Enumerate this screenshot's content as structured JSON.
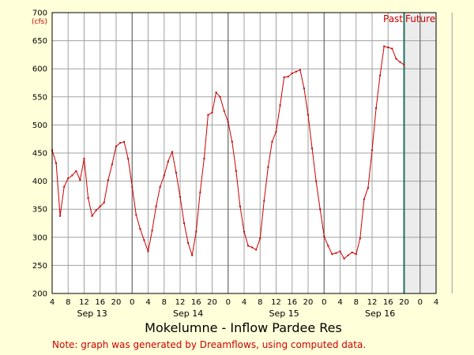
{
  "chart_data": {
    "type": "line",
    "title": "Mokelumne - Inflow Pardee Res",
    "note": "Note: graph was generated by Dreamflows, using computed data.",
    "y_unit_label": "(cfs)",
    "ylim": [
      200,
      700
    ],
    "y_ticks": [
      200,
      250,
      300,
      350,
      400,
      450,
      500,
      550,
      600,
      650,
      700
    ],
    "x_unit": "hours",
    "xlim": [
      0,
      96
    ],
    "x_tick_labels": [
      "4",
      "8",
      "12",
      "16",
      "20",
      "0",
      "4",
      "8",
      "12",
      "16",
      "20",
      "0",
      "4",
      "8",
      "12",
      "16",
      "20",
      "0",
      "4",
      "8",
      "12",
      "16",
      "20",
      "0",
      "4"
    ],
    "day_labels": [
      {
        "x": 10,
        "text": "Sep 13"
      },
      {
        "x": 34,
        "text": "Sep 14"
      },
      {
        "x": 58,
        "text": "Sep 15"
      },
      {
        "x": 82,
        "text": "Sep 16"
      }
    ],
    "day_boundaries": [
      20,
      44,
      68,
      92
    ],
    "now_x": 88,
    "region_labels": {
      "past": "Past",
      "future": "Future"
    },
    "colors": {
      "line": "#cc0000",
      "now_line": "#1f6f5f",
      "grid": "#a0a0a0",
      "day_line": "#606060",
      "future_fill": "#ececec",
      "background": "#ffffd9",
      "note": "#cc0000"
    },
    "grid": true,
    "series": [
      {
        "x": [
          0,
          1,
          2,
          3,
          4,
          5,
          6,
          7,
          8,
          9,
          10,
          11,
          12,
          13,
          14,
          15,
          16,
          17,
          18,
          19,
          20,
          21,
          22,
          23,
          24,
          25,
          26,
          27,
          28,
          29,
          30,
          31,
          32,
          33,
          34,
          35,
          36,
          37,
          38,
          39,
          40,
          41,
          42,
          43,
          44,
          45,
          46,
          47,
          48,
          49,
          50,
          51,
          52,
          53,
          54,
          55,
          56,
          57,
          58,
          59,
          60,
          61,
          62,
          63,
          64,
          65,
          66,
          67,
          68,
          69,
          70,
          71,
          72,
          73,
          74,
          75,
          76,
          77,
          78,
          79,
          80,
          81,
          82,
          83,
          84,
          85,
          86,
          87,
          88
        ],
        "values": [
          455,
          432,
          338,
          390,
          405,
          410,
          418,
          402,
          440,
          370,
          338,
          348,
          355,
          362,
          402,
          430,
          462,
          468,
          470,
          440,
          390,
          340,
          315,
          295,
          275,
          312,
          355,
          390,
          410,
          435,
          452,
          415,
          372,
          325,
          290,
          268,
          310,
          380,
          440,
          518,
          522,
          558,
          550,
          525,
          505,
          470,
          418,
          355,
          310,
          285,
          282,
          278,
          298,
          365,
          425,
          470,
          488,
          535,
          585,
          586,
          592,
          595,
          598,
          565,
          518,
          458,
          400,
          350,
          302,
          285,
          270,
          272,
          275,
          262,
          268,
          273,
          270,
          298,
          368,
          388,
          455,
          530,
          588,
          640,
          638,
          636,
          618,
          612,
          607
        ]
      }
    ]
  }
}
